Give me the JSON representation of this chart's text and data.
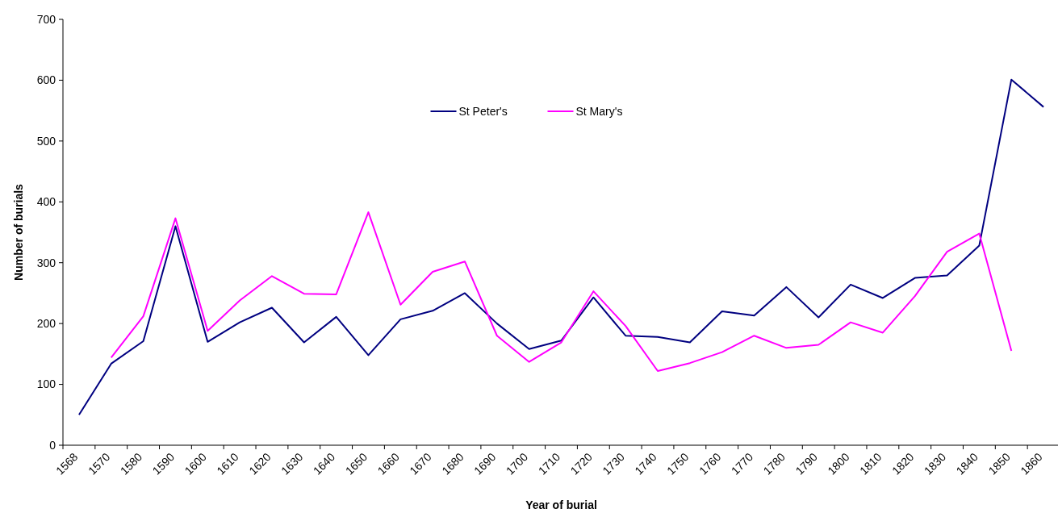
{
  "chart_data": {
    "type": "line",
    "xlabel": "Year of burial",
    "ylabel": "Number of burials",
    "categories": [
      "1568",
      "1570",
      "1580",
      "1590",
      "1600",
      "1610",
      "1620",
      "1630",
      "1640",
      "1650",
      "1660",
      "1670",
      "1680",
      "1690",
      "1700",
      "1710",
      "1720",
      "1730",
      "1740",
      "1750",
      "1760",
      "1770",
      "1780",
      "1790",
      "1800",
      "1810",
      "1820",
      "1830",
      "1840",
      "1850",
      "1860"
    ],
    "series": [
      {
        "name": "St Peter's",
        "color": "#000080",
        "values": [
          50,
          134,
          171,
          360,
          170,
          202,
          226,
          169,
          211,
          148,
          207,
          221,
          250,
          200,
          158,
          172,
          243,
          180,
          178,
          169,
          220,
          213,
          260,
          210,
          264,
          242,
          275,
          279,
          328,
          601,
          556
        ]
      },
      {
        "name": "St Mary's",
        "color": "#ff00ff",
        "values": [
          null,
          144,
          212,
          373,
          188,
          238,
          278,
          249,
          248,
          383,
          231,
          285,
          302,
          180,
          137,
          169,
          253,
          196,
          122,
          135,
          153,
          180,
          160,
          165,
          202,
          185,
          245,
          318,
          348,
          155,
          null
        ]
      }
    ],
    "ylim": [
      0,
      700
    ],
    "yticks": [
      0,
      100,
      200,
      300,
      400,
      500,
      600,
      700
    ],
    "grid": false,
    "legend": "top",
    "marker": "none",
    "line_style": "solid"
  }
}
